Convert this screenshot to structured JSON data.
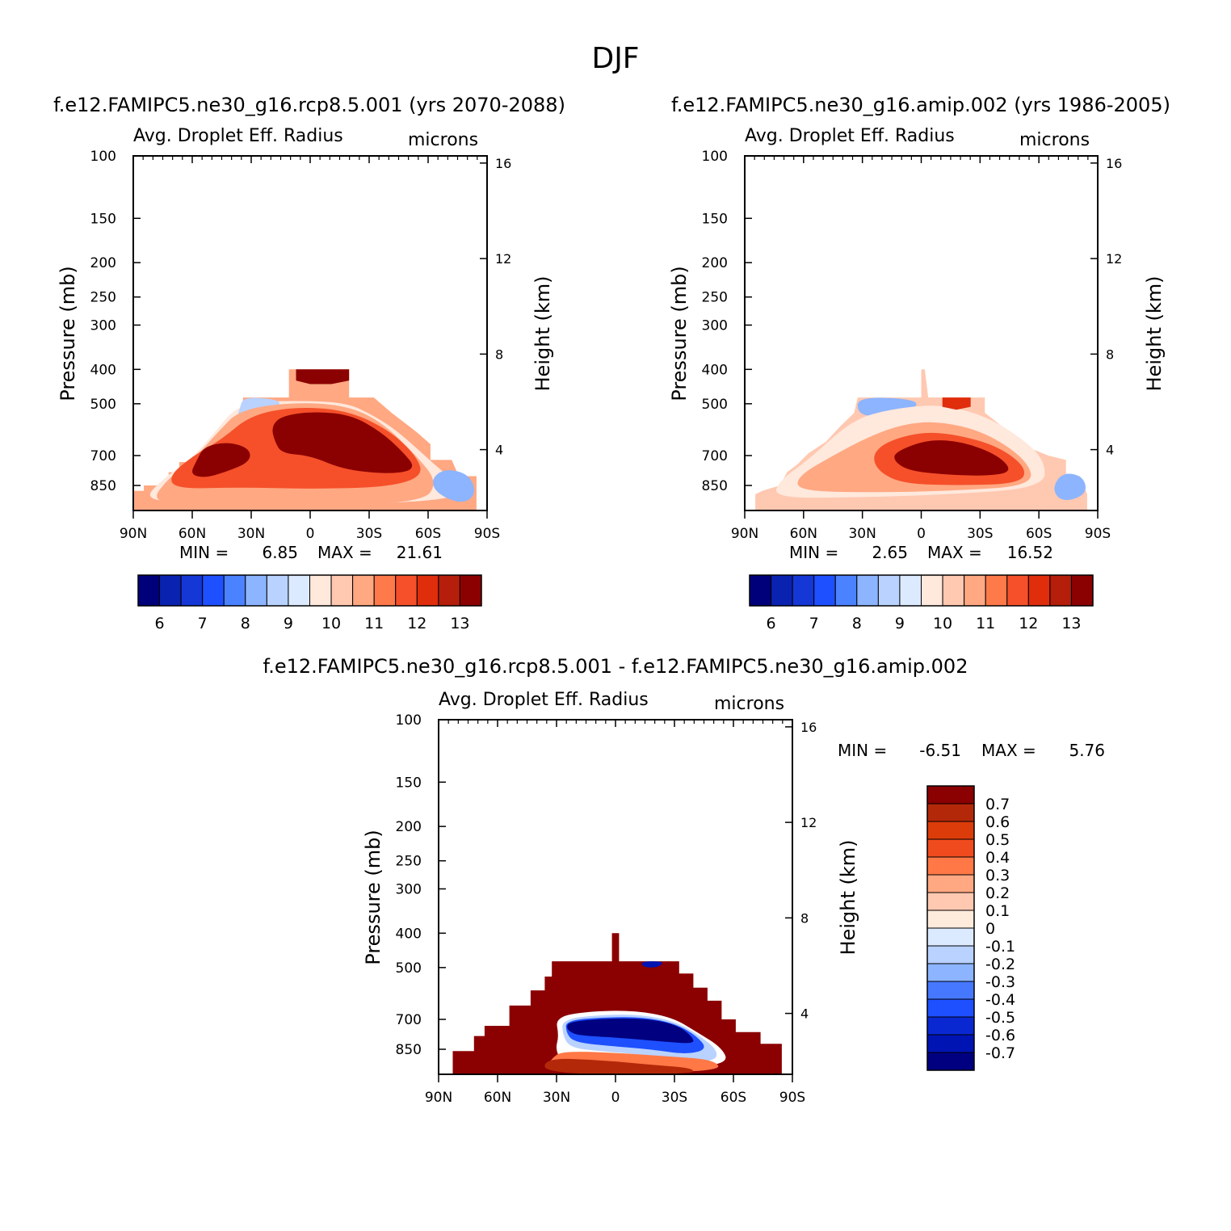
{
  "figure_title": "DJF",
  "palette": {
    "abs": [
      "#00007a",
      "#0a22b0",
      "#1437d6",
      "#1e50ff",
      "#4b82ff",
      "#8cb4ff",
      "#b9d2ff",
      "#dceaff",
      "#ffe8dc",
      "#ffc8b0",
      "#ffa882",
      "#ff7a4b",
      "#f5502a",
      "#e02d0c",
      "#b41e0a",
      "#8b0000"
    ],
    "diff": [
      "#000080",
      "#0014b4",
      "#0a28d2",
      "#1e50ff",
      "#4678ff",
      "#8cb4ff",
      "#b9d2ff",
      "#dceaff",
      "#ffebdc",
      "#ffc8b0",
      "#ffa882",
      "#ff7846",
      "#f04b1e",
      "#dc3c0a",
      "#b4280a",
      "#8b0000"
    ]
  },
  "chart_data": [
    {
      "type": "heatmap",
      "title": "f.e12.FAMIPC5.ne30_g16.rcp8.5.001 (yrs 2070-2088)",
      "left_label": "Avg. Droplet Eff. Radius",
      "right_label": "microns",
      "ylabel": "Pressure (mb)",
      "ylabel_right": "Height (km)",
      "y_ticks": [
        "100",
        "150",
        "200",
        "250",
        "300",
        "400",
        "500",
        "700",
        "850"
      ],
      "y_ticks_right": [
        "16",
        "12",
        "8",
        "4"
      ],
      "x_ticks": [
        "90N",
        "60N",
        "30N",
        "0",
        "30S",
        "60S",
        "90S"
      ],
      "min_label": "MIN =",
      "min_value": "6.85",
      "max_label": "MAX =",
      "max_value": "21.61",
      "colorbar_labels": [
        "6",
        "7",
        "8",
        "9",
        "10",
        "11",
        "12",
        "13"
      ],
      "ylim": [
        1000,
        100
      ],
      "xlim": [
        "90N",
        "90S"
      ]
    },
    {
      "type": "heatmap",
      "title": "f.e12.FAMIPC5.ne30_g16.amip.002 (yrs 1986-2005)",
      "left_label": "Avg. Droplet Eff. Radius",
      "right_label": "microns",
      "ylabel": "Pressure (mb)",
      "ylabel_right": "Height (km)",
      "y_ticks": [
        "100",
        "150",
        "200",
        "250",
        "300",
        "400",
        "500",
        "700",
        "850"
      ],
      "y_ticks_right": [
        "16",
        "12",
        "8",
        "4"
      ],
      "x_ticks": [
        "90N",
        "60N",
        "30N",
        "0",
        "30S",
        "60S",
        "90S"
      ],
      "min_label": "MIN =",
      "min_value": "2.65",
      "max_label": "MAX =",
      "max_value": "16.52",
      "colorbar_labels": [
        "6",
        "7",
        "8",
        "9",
        "10",
        "11",
        "12",
        "13"
      ],
      "ylim": [
        1000,
        100
      ],
      "xlim": [
        "90N",
        "90S"
      ]
    },
    {
      "type": "heatmap",
      "title": "f.e12.FAMIPC5.ne30_g16.rcp8.5.001 - f.e12.FAMIPC5.ne30_g16.amip.002",
      "left_label": "Avg. Droplet Eff. Radius",
      "right_label": "microns",
      "ylabel": "Pressure (mb)",
      "ylabel_right": "Height (km)",
      "y_ticks": [
        "100",
        "150",
        "200",
        "250",
        "300",
        "400",
        "500",
        "700",
        "850"
      ],
      "y_ticks_right": [
        "16",
        "12",
        "8",
        "4"
      ],
      "x_ticks": [
        "90N",
        "60N",
        "30N",
        "0",
        "30S",
        "60S",
        "90S"
      ],
      "min_label": "MIN =",
      "min_value": "-6.51",
      "max_label": "MAX =",
      "max_value": "5.76",
      "colorbar_labels": [
        "0.7",
        "0.6",
        "0.5",
        "0.4",
        "0.3",
        "0.2",
        "0.1",
        "0",
        "-0.1",
        "-0.2",
        "-0.3",
        "-0.4",
        "-0.5",
        "-0.6",
        "-0.7"
      ],
      "ylim": [
        1000,
        100
      ],
      "xlim": [
        "90N",
        "90S"
      ]
    }
  ]
}
